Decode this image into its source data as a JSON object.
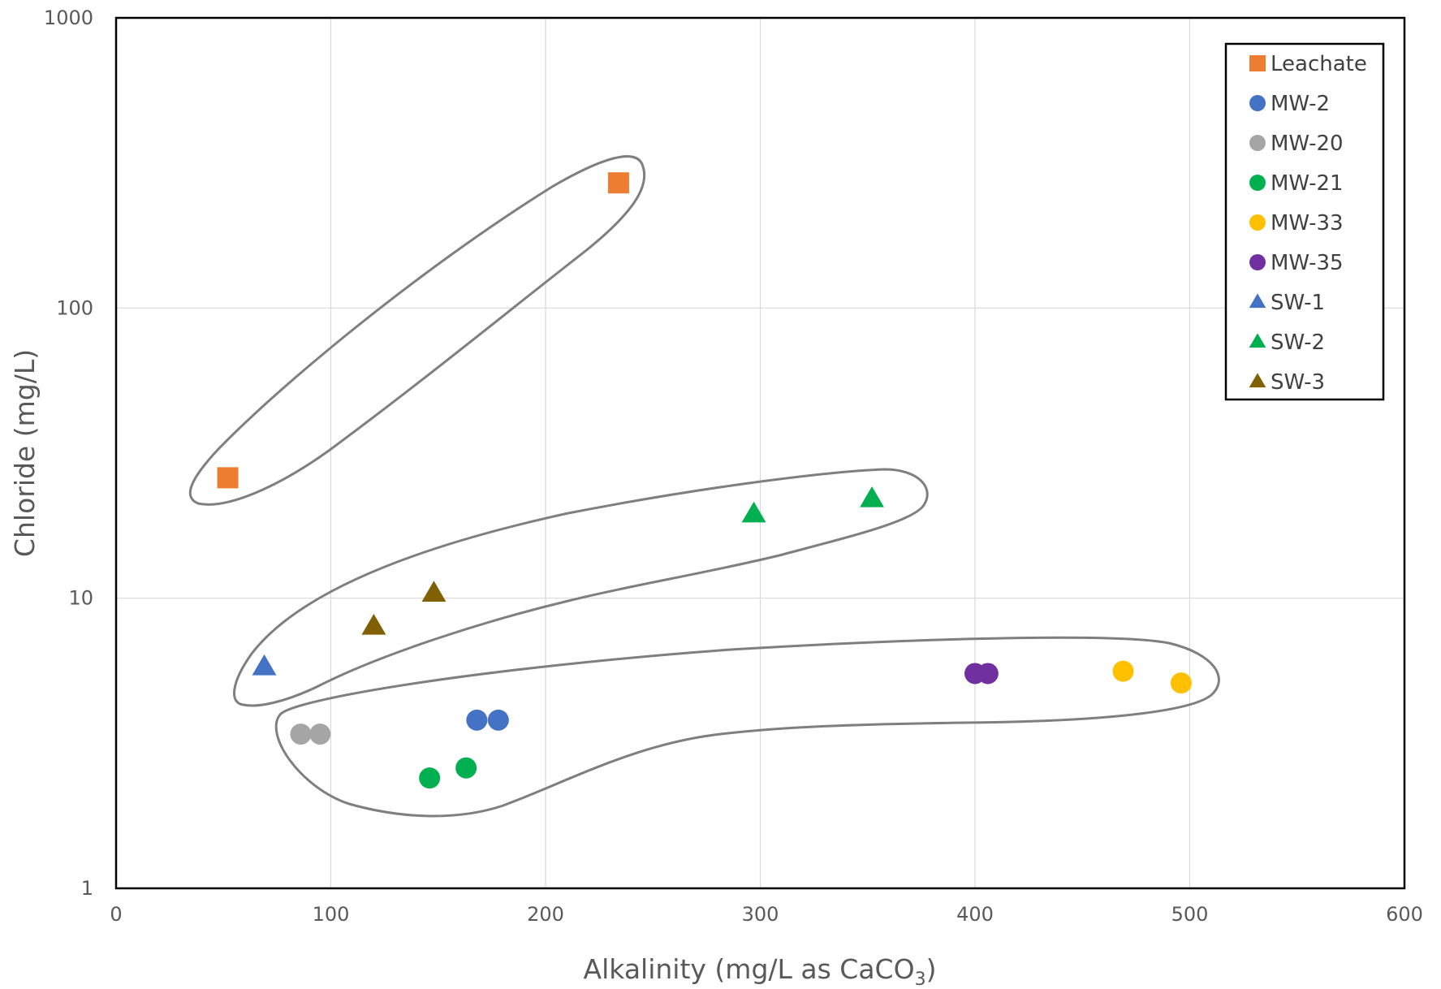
{
  "chart_data": {
    "type": "scatter",
    "xlabel_main": "Alkalinity (mg/L as CaCO",
    "xlabel_sub": "3",
    "xlabel_end": ")",
    "ylabel": "Chloride (mg/L)",
    "xlim": [
      0,
      600
    ],
    "ylim": [
      1,
      1000
    ],
    "yscale": "log",
    "grid": true,
    "legend_position": "top-right",
    "x_ticks": [
      0,
      100,
      200,
      300,
      400,
      500,
      600
    ],
    "x_tick_labels": [
      "0",
      "100",
      "200",
      "300",
      "400",
      "500",
      "600"
    ],
    "y_ticks": [
      1,
      10,
      100,
      1000
    ],
    "y_tick_labels": [
      "1",
      "10",
      "100",
      "1000"
    ],
    "series": [
      {
        "name": "Leachate",
        "marker": "square",
        "color": "#ED7D31",
        "points": [
          [
            52,
            26
          ],
          [
            234,
            270
          ]
        ]
      },
      {
        "name": "MW-2",
        "marker": "circle",
        "color": "#4472C4",
        "points": [
          [
            168,
            3.8
          ],
          [
            178,
            3.8
          ]
        ]
      },
      {
        "name": "MW-20",
        "marker": "circle",
        "color": "#A5A5A5",
        "points": [
          [
            86,
            3.4
          ],
          [
            95,
            3.4
          ]
        ]
      },
      {
        "name": "MW-21",
        "marker": "circle",
        "color": "#00B050",
        "points": [
          [
            146,
            2.4
          ],
          [
            163,
            2.6
          ]
        ]
      },
      {
        "name": "MW-33",
        "marker": "circle",
        "color": "#FFC000",
        "points": [
          [
            469,
            5.6
          ],
          [
            496,
            5.1
          ]
        ]
      },
      {
        "name": "MW-35",
        "marker": "circle",
        "color": "#7030A0",
        "points": [
          [
            400,
            5.5
          ],
          [
            406,
            5.5
          ]
        ]
      },
      {
        "name": "SW-1",
        "marker": "triangle",
        "color": "#4472C4",
        "points": [
          [
            69,
            5.8
          ]
        ]
      },
      {
        "name": "SW-2",
        "marker": "triangle",
        "color": "#00B050",
        "points": [
          [
            297,
            19.5
          ],
          [
            352,
            22
          ]
        ]
      },
      {
        "name": "SW-3",
        "marker": "triangle",
        "color": "#806000",
        "points": [
          [
            120,
            8
          ]
        ],
        "extra_points": [
          [
            148,
            10.4
          ]
        ]
      }
    ],
    "annotations": [
      {
        "type": "enclosure",
        "label": "",
        "description": "outline around Leachate points"
      },
      {
        "type": "enclosure",
        "label": "",
        "description": "outline around SW-1, SW-2, SW-3 points"
      },
      {
        "type": "enclosure",
        "label": "",
        "description": "outline around MW-2, MW-20, MW-21, MW-33, MW-35 points"
      }
    ],
    "colors": {
      "grid": "#D9D9D9",
      "axis_frame": "#000000",
      "enclosure": "#7F7F7F",
      "text": "#595959"
    }
  }
}
